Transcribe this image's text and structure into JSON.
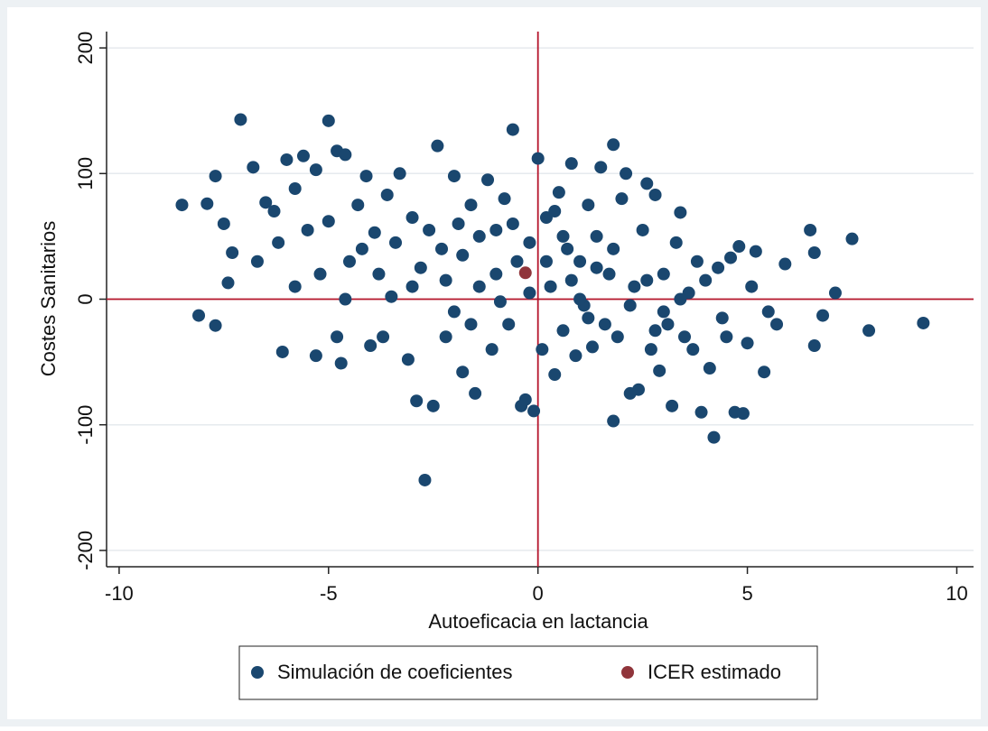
{
  "chart_data": {
    "type": "scatter",
    "x_label": "Autoeficacia en lactancia",
    "y_label": "Costes Sanitarios",
    "xlim": [
      -10.3,
      10.4
    ],
    "ylim": [
      -213,
      213
    ],
    "xticks": [
      -10,
      -5,
      0,
      5,
      10
    ],
    "yticks": [
      -200,
      -100,
      0,
      100,
      200
    ],
    "grid": true,
    "reference_lines": {
      "x": 0,
      "y": 0,
      "color": "#b5152b"
    },
    "legend_position": "bottom",
    "series": [
      {
        "name": "Simulación de coeficientes",
        "color": "#1a476f",
        "x": [
          -8.5,
          -8.1,
          -7.9,
          -7.7,
          -7.7,
          -7.5,
          -7.4,
          -7.3,
          -7.1,
          -6.8,
          -6.7,
          -6.5,
          -6.3,
          -6.1,
          -6.0,
          -5.8,
          -5.6,
          -5.5,
          -5.3,
          -5.3,
          -5.0,
          -5.0,
          -4.8,
          -4.8,
          -4.7,
          -4.6,
          -4.5,
          -4.3,
          -4.1,
          -4.0,
          -3.9,
          -3.7,
          -3.6,
          -3.5,
          -3.3,
          -3.1,
          -3.0,
          -2.9,
          -2.8,
          -2.7,
          -2.5,
          -2.4,
          -2.3,
          -2.2,
          -2.0,
          -1.9,
          -1.8,
          -1.6,
          -1.5,
          -1.4,
          -1.2,
          -1.1,
          -1.0,
          -0.9,
          -0.8,
          -0.7,
          -0.6,
          -0.5,
          -0.4,
          -0.3,
          -0.2,
          -0.1,
          0.0,
          0.1,
          0.2,
          0.3,
          0.4,
          0.5,
          0.6,
          0.7,
          0.8,
          0.9,
          1.0,
          1.1,
          1.2,
          1.3,
          1.4,
          1.5,
          1.6,
          1.7,
          1.8,
          1.8,
          1.9,
          2.0,
          2.1,
          2.2,
          2.3,
          2.4,
          2.5,
          2.6,
          2.7,
          2.8,
          2.9,
          3.0,
          3.1,
          3.2,
          3.3,
          3.4,
          3.5,
          3.6,
          3.7,
          3.8,
          3.9,
          4.0,
          4.1,
          4.2,
          4.3,
          4.4,
          4.5,
          4.6,
          4.7,
          4.8,
          4.9,
          5.0,
          5.1,
          5.2,
          5.4,
          5.5,
          5.7,
          5.9,
          6.5,
          6.6,
          6.6,
          6.8,
          7.1,
          7.5,
          7.9,
          9.2,
          -4.2,
          -3.8,
          -3.4,
          -3.0,
          -2.6,
          -2.2,
          -1.8,
          -1.4,
          -1.0,
          -0.6,
          -0.2,
          0.2,
          0.6,
          1.0,
          1.4,
          1.8,
          2.2,
          2.6,
          3.0,
          3.4,
          -5.8,
          -5.2,
          -4.6,
          -6.2,
          -2.0,
          0.4,
          1.2,
          2.8,
          -1.6,
          0.8
        ],
        "y": [
          75,
          -13,
          76,
          98,
          -21,
          60,
          13,
          37,
          143,
          105,
          30,
          77,
          70,
          -42,
          111,
          88,
          114,
          55,
          -45,
          103,
          142,
          62,
          118,
          -30,
          -51,
          115,
          30,
          75,
          98,
          -37,
          53,
          -30,
          83,
          2,
          100,
          -48,
          65,
          -81,
          25,
          -144,
          -85,
          122,
          40,
          -30,
          98,
          60,
          -58,
          75,
          -75,
          10,
          95,
          -40,
          55,
          -2,
          80,
          -20,
          135,
          30,
          -85,
          -80,
          45,
          -89,
          112,
          -40,
          65,
          10,
          -60,
          85,
          -25,
          40,
          108,
          -45,
          30,
          -5,
          75,
          -38,
          50,
          105,
          -20,
          20,
          123,
          -97,
          -30,
          80,
          100,
          -75,
          10,
          -72,
          55,
          92,
          -40,
          83,
          -57,
          20,
          -20,
          -85,
          45,
          69,
          -30,
          5,
          -40,
          30,
          -90,
          15,
          -55,
          -110,
          25,
          -15,
          -30,
          33,
          -90,
          42,
          -91,
          -35,
          10,
          38,
          -58,
          -10,
          -20,
          28,
          55,
          37,
          -37,
          -13,
          5,
          48,
          -25,
          -19,
          40,
          20,
          45,
          10,
          55,
          15,
          35,
          50,
          20,
          60,
          5,
          30,
          50,
          0,
          25,
          40,
          -5,
          15,
          -10,
          0,
          10,
          20,
          0,
          45,
          -10,
          70,
          -15,
          -25,
          -20,
          15
        ]
      },
      {
        "name": "ICER estimado",
        "color": "#90353b",
        "x": [
          -0.3
        ],
        "y": [
          21
        ]
      }
    ]
  }
}
